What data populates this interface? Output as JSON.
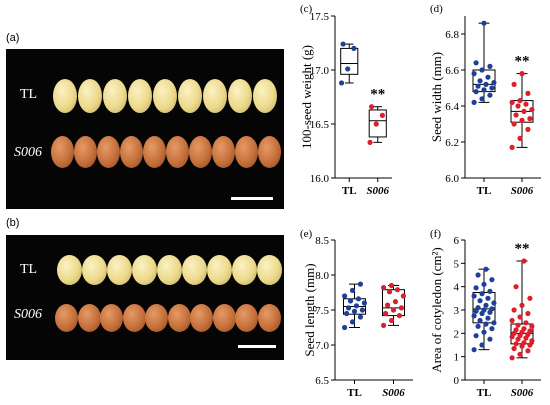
{
  "panel_a": {
    "label": "(a)",
    "row1_label": "TL",
    "row2_label": "S006"
  },
  "panel_b": {
    "label": "(b)",
    "row1_label": "TL",
    "row2_label": "S006"
  },
  "colors": {
    "tl": "#1f3f99",
    "s006": "#dd1f2b",
    "tl_seed": "#ecd98a",
    "s006_seed": "#c46f3a"
  },
  "chart_data": [
    {
      "panel": "(c)",
      "type": "box",
      "ylabel": "100-seed weight (g)",
      "ylim": [
        16.0,
        17.5
      ],
      "yticks": [
        "16.0",
        "16.5",
        "17.0",
        "17.5"
      ],
      "categories": [
        "TL",
        "S006"
      ],
      "significance": "**",
      "series": [
        {
          "name": "TL",
          "box": {
            "min": 16.88,
            "q1": 16.96,
            "median": 17.06,
            "q3": 17.2,
            "max": 17.24
          },
          "points": [
            16.88,
            17.01,
            17.2,
            17.24
          ]
        },
        {
          "name": "S006",
          "box": {
            "min": 16.33,
            "q1": 16.38,
            "median": 16.53,
            "q3": 16.63,
            "max": 16.66
          },
          "points": [
            16.33,
            16.5,
            16.58,
            16.66
          ]
        }
      ]
    },
    {
      "panel": "(d)",
      "type": "box",
      "ylabel": "Seed width (mm)",
      "ylim": [
        6.0,
        6.9
      ],
      "yticks": [
        "6.0",
        "6.2",
        "6.4",
        "6.6",
        "6.8"
      ],
      "categories": [
        "TL",
        "S006"
      ],
      "significance": "**",
      "series": [
        {
          "name": "TL",
          "box": {
            "min": 6.42,
            "q1": 6.48,
            "median": 6.52,
            "q3": 6.6,
            "max": 6.86
          },
          "points": [
            6.42,
            6.44,
            6.46,
            6.48,
            6.49,
            6.5,
            6.51,
            6.52,
            6.53,
            6.54,
            6.56,
            6.58,
            6.6,
            6.62,
            6.64,
            6.86
          ]
        },
        {
          "name": "S006",
          "box": {
            "min": 6.17,
            "q1": 6.31,
            "median": 6.37,
            "q3": 6.43,
            "max": 6.58
          },
          "points": [
            6.17,
            6.22,
            6.27,
            6.3,
            6.32,
            6.33,
            6.35,
            6.37,
            6.38,
            6.4,
            6.41,
            6.42,
            6.43,
            6.47,
            6.52,
            6.58
          ]
        }
      ]
    },
    {
      "panel": "(e)",
      "type": "box",
      "ylabel": "Seed length (mm)",
      "ylim": [
        6.5,
        8.5
      ],
      "yticks": [
        "6.5",
        "7.0",
        "7.5",
        "8.0",
        "8.5"
      ],
      "categories": [
        "TL",
        "S006"
      ],
      "significance": "",
      "series": [
        {
          "name": "TL",
          "box": {
            "min": 7.25,
            "q1": 7.44,
            "median": 7.55,
            "q3": 7.66,
            "max": 7.87
          },
          "points": [
            7.25,
            7.33,
            7.4,
            7.45,
            7.48,
            7.5,
            7.53,
            7.56,
            7.6,
            7.63,
            7.66,
            7.7,
            7.78,
            7.87
          ]
        },
        {
          "name": "S006",
          "box": {
            "min": 7.28,
            "q1": 7.42,
            "median": 7.53,
            "q3": 7.79,
            "max": 7.85
          },
          "points": [
            7.28,
            7.35,
            7.42,
            7.45,
            7.5,
            7.53,
            7.57,
            7.62,
            7.7,
            7.76,
            7.79,
            7.82,
            7.85
          ]
        }
      ]
    },
    {
      "panel": "(f)",
      "type": "box",
      "ylabel": "Area of cotyledon (cm²)",
      "ylim": [
        0,
        6
      ],
      "yticks": [
        "0",
        "1",
        "2",
        "3",
        "4",
        "5",
        "6"
      ],
      "categories": [
        "TL",
        "S006"
      ],
      "significance": "**",
      "series": [
        {
          "name": "TL",
          "box": {
            "min": 1.3,
            "q1": 2.45,
            "median": 3.05,
            "q3": 3.75,
            "max": 4.75
          },
          "points": [
            1.3,
            1.5,
            1.75,
            1.9,
            2.05,
            2.2,
            2.3,
            2.4,
            2.45,
            2.55,
            2.65,
            2.75,
            2.85,
            2.9,
            2.95,
            3.0,
            3.05,
            3.1,
            3.2,
            3.3,
            3.4,
            3.5,
            3.6,
            3.7,
            3.8,
            3.95,
            4.1,
            4.3,
            4.5,
            4.75
          ]
        },
        {
          "name": "S006",
          "box": {
            "min": 0.95,
            "q1": 1.55,
            "median": 2.0,
            "q3": 2.4,
            "max": 5.1
          },
          "points": [
            0.95,
            1.1,
            1.25,
            1.35,
            1.45,
            1.5,
            1.55,
            1.6,
            1.68,
            1.75,
            1.8,
            1.85,
            1.9,
            1.95,
            2.0,
            2.05,
            2.1,
            2.15,
            2.2,
            2.3,
            2.35,
            2.45,
            2.55,
            2.7,
            2.85,
            3.0,
            3.2,
            3.5,
            4.0,
            5.1
          ]
        }
      ]
    }
  ]
}
